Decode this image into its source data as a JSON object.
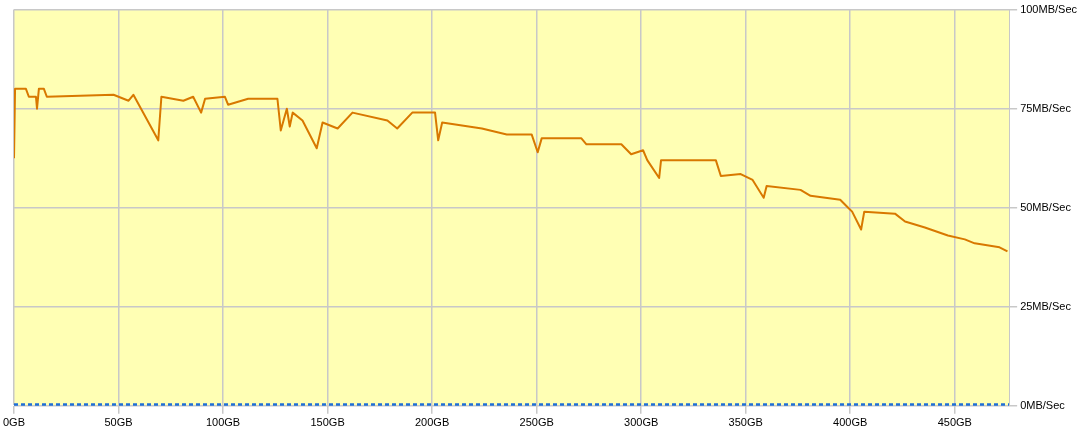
{
  "chart_data": {
    "type": "line",
    "xlim": [
      0,
      476
    ],
    "ylim": [
      0,
      100
    ],
    "xticks": [
      {
        "value": 0,
        "label": "0GB"
      },
      {
        "value": 50,
        "label": "50GB"
      },
      {
        "value": 100,
        "label": "100GB"
      },
      {
        "value": 150,
        "label": "150GB"
      },
      {
        "value": 200,
        "label": "200GB"
      },
      {
        "value": 250,
        "label": "250GB"
      },
      {
        "value": 300,
        "label": "300GB"
      },
      {
        "value": 350,
        "label": "350GB"
      },
      {
        "value": 400,
        "label": "400GB"
      },
      {
        "value": 450,
        "label": "450GB"
      }
    ],
    "yticks": [
      {
        "value": 0,
        "label": "0MB/Sec"
      },
      {
        "value": 25,
        "label": "25MB/Sec"
      },
      {
        "value": 50,
        "label": "50MB/Sec"
      },
      {
        "value": 75,
        "label": "75MB/Sec"
      },
      {
        "value": 100,
        "label": "100MB/Sec"
      }
    ],
    "grid": true,
    "legend": false,
    "marker": "none",
    "series": [
      {
        "color": "#d87800",
        "line_style": "solid",
        "x": [
          0,
          0.5,
          5.7,
          7.1,
          10.5,
          11,
          11.9,
          14.3,
          15.7,
          47.6,
          54.8,
          57.1,
          69,
          70.5,
          81,
          85.7,
          89.5,
          91.4,
          100.9,
          102.4,
          112,
          126,
          127.6,
          130.5,
          131.9,
          133.3,
          138,
          144.8,
          147.6,
          154.8,
          161.9,
          178.6,
          183.3,
          190.5,
          201.4,
          202.9,
          204.8,
          223.8,
          235.7,
          247.6,
          250.5,
          252.4,
          271.4,
          273.8,
          290.5,
          295.2,
          300.9,
          302.9,
          308.6,
          309.5,
          335.7,
          338.1,
          347.6,
          353.3,
          358.6,
          360,
          376.2,
          381,
          395.2,
          399,
          400.9,
          405.2,
          406.7,
          421.4,
          426.2,
          435.7,
          446.7,
          454.8,
          459.5,
          471.4,
          475.2
        ],
        "values": [
          62.5,
          80,
          80,
          78,
          78,
          75,
          80,
          80,
          78,
          78.5,
          77,
          78.5,
          67,
          78,
          77,
          78,
          74,
          77.5,
          78,
          76,
          77.5,
          77.5,
          69.5,
          75,
          70.5,
          74,
          72,
          65,
          71.5,
          70,
          74,
          72,
          70,
          74,
          74,
          67,
          71.5,
          70,
          68.5,
          68.5,
          64,
          67.5,
          67.5,
          66,
          66,
          63.5,
          64.5,
          62,
          57.5,
          62,
          62,
          58,
          58.5,
          57,
          52.5,
          55.5,
          54.5,
          53,
          52,
          50,
          49,
          44.5,
          49,
          48.5,
          46.5,
          45,
          43,
          42,
          41,
          40,
          39
        ]
      },
      {
        "color": "#1f6fd6",
        "line_style": "dotted",
        "x": [
          0,
          476
        ],
        "values": [
          0,
          0
        ]
      }
    ]
  }
}
